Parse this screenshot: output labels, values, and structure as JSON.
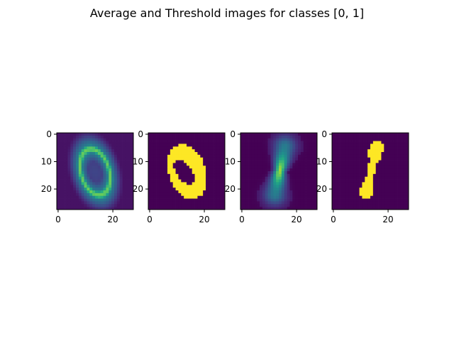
{
  "title": "Average and Threshold images for classes [0, 1]",
  "chart_data": [
    {
      "type": "heatmap",
      "colormap": "viridis",
      "grid": false,
      "xlim": [
        -0.5,
        27.5
      ],
      "ylim": [
        27.5,
        -0.5
      ],
      "x_ticks": [
        "0",
        "20"
      ],
      "y_ticks": [
        "0",
        "10",
        "20"
      ],
      "content": "average image of digit 0: blurred ring",
      "peak_value": 0.7
    },
    {
      "type": "heatmap",
      "colormap": "viridis",
      "grid": false,
      "xlim": [
        -0.5,
        27.5
      ],
      "ylim": [
        27.5,
        -0.5
      ],
      "x_ticks": [
        "0",
        "20"
      ],
      "y_ticks": [
        "0",
        "10",
        "20"
      ],
      "content": "thresholded (binary) image of digit 0",
      "values_binary": [
        0,
        1
      ]
    },
    {
      "type": "heatmap",
      "colormap": "viridis",
      "grid": false,
      "xlim": [
        -0.5,
        27.5
      ],
      "ylim": [
        27.5,
        -0.5
      ],
      "x_ticks": [
        "0",
        "20"
      ],
      "y_ticks": [
        "0",
        "10",
        "20"
      ],
      "content": "average image of digit 1: slanted stroke",
      "peak_value": 0.8
    },
    {
      "type": "heatmap",
      "colormap": "viridis",
      "grid": false,
      "xlim": [
        -0.5,
        27.5
      ],
      "ylim": [
        27.5,
        -0.5
      ],
      "x_ticks": [
        "0",
        "20"
      ],
      "y_ticks": [
        "0",
        "10",
        "20"
      ],
      "content": "thresholded (binary) image of digit 1",
      "values_binary": [
        0,
        1
      ]
    }
  ]
}
